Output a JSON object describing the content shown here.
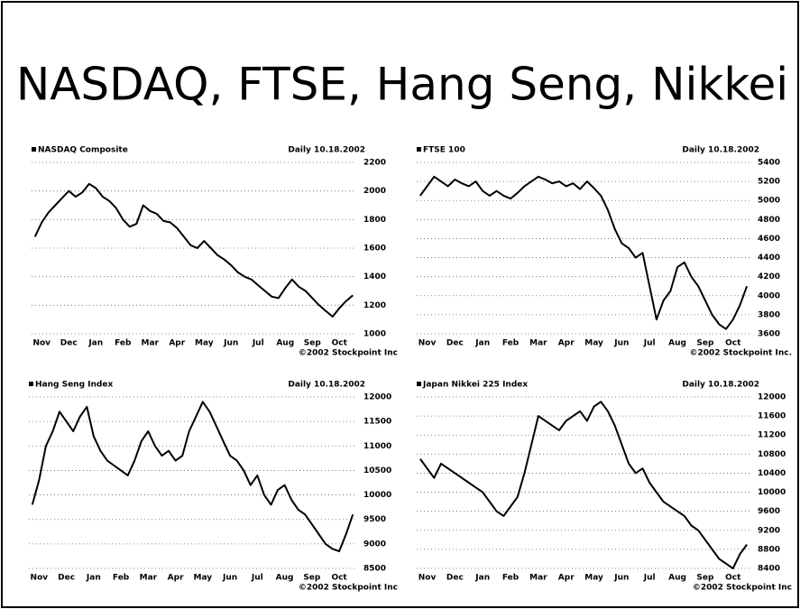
{
  "title": "NASDAQ, FTSE, Hang Seng, Nikkei",
  "chart_data": [
    {
      "type": "line",
      "title": "NASDAQ Composite",
      "subtitle": "Daily 10.18.2002",
      "credit": "©2002 Stockpoint Inc",
      "color": "#000000",
      "grid": true,
      "categories": [
        null,
        "Nov",
        null,
        null,
        null,
        "Dec",
        null,
        null,
        null,
        "Jan",
        null,
        null,
        null,
        "Feb",
        null,
        null,
        null,
        "Mar",
        null,
        null,
        null,
        "Apr",
        null,
        null,
        null,
        "May",
        null,
        null,
        null,
        "Jun",
        null,
        null,
        null,
        "Jul",
        null,
        null,
        null,
        "Aug",
        null,
        null,
        null,
        "Sep",
        null,
        null,
        null,
        "Oct",
        null,
        null
      ],
      "values": [
        1680,
        1780,
        1850,
        1900,
        1950,
        2000,
        1960,
        1990,
        2050,
        2020,
        1960,
        1930,
        1880,
        1800,
        1750,
        1770,
        1900,
        1860,
        1840,
        1790,
        1780,
        1740,
        1680,
        1620,
        1600,
        1650,
        1600,
        1550,
        1520,
        1480,
        1430,
        1400,
        1380,
        1340,
        1300,
        1260,
        1250,
        1320,
        1380,
        1330,
        1300,
        1250,
        1200,
        1160,
        1120,
        1180,
        1230,
        1270
      ],
      "ylim": [
        1000,
        2200
      ],
      "yticks": [
        1000,
        1200,
        1400,
        1600,
        1800,
        2000,
        2200
      ]
    },
    {
      "type": "line",
      "title": "FTSE 100",
      "subtitle": "Daily 10.18.2002",
      "credit": "©2002 Stockpoint Inc.",
      "color": "#000000",
      "grid": true,
      "categories": [
        null,
        "Nov",
        null,
        null,
        null,
        "Dec",
        null,
        null,
        null,
        "Jan",
        null,
        null,
        null,
        "Feb",
        null,
        null,
        null,
        "Mar",
        null,
        null,
        null,
        "Apr",
        null,
        null,
        null,
        "May",
        null,
        null,
        null,
        "Jun",
        null,
        null,
        null,
        "Jul",
        null,
        null,
        null,
        "Aug",
        null,
        null,
        null,
        "Sep",
        null,
        null,
        null,
        "Oct",
        null,
        null
      ],
      "values": [
        5050,
        5150,
        5250,
        5200,
        5150,
        5220,
        5180,
        5150,
        5200,
        5100,
        5050,
        5100,
        5050,
        5020,
        5080,
        5150,
        5200,
        5250,
        5220,
        5180,
        5200,
        5150,
        5180,
        5120,
        5200,
        5130,
        5050,
        4900,
        4700,
        4550,
        4500,
        4400,
        4450,
        4100,
        3750,
        3950,
        4050,
        4300,
        4350,
        4200,
        4100,
        3950,
        3800,
        3700,
        3650,
        3750,
        3900,
        4100
      ],
      "ylim": [
        3600,
        5400
      ],
      "yticks": [
        3600,
        3800,
        4000,
        4200,
        4400,
        4600,
        4800,
        5000,
        5200,
        5400
      ]
    },
    {
      "type": "line",
      "title": "Hang Seng Index",
      "subtitle": "Daily 10.18.2002",
      "credit": "©2002 Stockpoint Inc",
      "color": "#000000",
      "grid": true,
      "categories": [
        null,
        "Nov",
        null,
        null,
        null,
        "Dec",
        null,
        null,
        null,
        "Jan",
        null,
        null,
        null,
        "Feb",
        null,
        null,
        null,
        "Mar",
        null,
        null,
        null,
        "Apr",
        null,
        null,
        null,
        "May",
        null,
        null,
        null,
        "Jun",
        null,
        null,
        null,
        "Jul",
        null,
        null,
        null,
        "Aug",
        null,
        null,
        null,
        "Sep",
        null,
        null,
        null,
        "Oct",
        null,
        null
      ],
      "values": [
        9800,
        10300,
        11000,
        11300,
        11700,
        11500,
        11300,
        11600,
        11800,
        11200,
        10900,
        10700,
        10600,
        10500,
        10400,
        10700,
        11100,
        11300,
        11000,
        10800,
        10900,
        10700,
        10800,
        11300,
        11600,
        11900,
        11700,
        11400,
        11100,
        10800,
        10700,
        10500,
        10200,
        10400,
        10000,
        9800,
        10100,
        10200,
        9900,
        9700,
        9600,
        9400,
        9200,
        9000,
        8900,
        8850,
        9200,
        9600
      ],
      "ylim": [
        8500,
        12000
      ],
      "yticks": [
        8500,
        9000,
        9500,
        10000,
        10500,
        11000,
        11500,
        12000
      ]
    },
    {
      "type": "line",
      "title": "Japan Nikkei 225 Index",
      "subtitle": "Daily 10.18.2002",
      "credit": "©2002 Stockpoint Inc",
      "color": "#000000",
      "grid": true,
      "categories": [
        null,
        "Nov",
        null,
        null,
        null,
        "Dec",
        null,
        null,
        null,
        "Jan",
        null,
        null,
        null,
        "Feb",
        null,
        null,
        null,
        "Mar",
        null,
        null,
        null,
        "Apr",
        null,
        null,
        null,
        "May",
        null,
        null,
        null,
        "Jun",
        null,
        null,
        null,
        "Jul",
        null,
        null,
        null,
        "Aug",
        null,
        null,
        null,
        "Sep",
        null,
        null,
        null,
        "Oct",
        null,
        null
      ],
      "values": [
        10700,
        10500,
        10300,
        10600,
        10500,
        10400,
        10300,
        10200,
        10100,
        10000,
        9800,
        9600,
        9500,
        9700,
        9900,
        10400,
        11000,
        11600,
        11500,
        11400,
        11300,
        11500,
        11600,
        11700,
        11500,
        11800,
        11900,
        11700,
        11400,
        11000,
        10600,
        10400,
        10500,
        10200,
        10000,
        9800,
        9700,
        9600,
        9500,
        9300,
        9200,
        9000,
        8800,
        8600,
        8500,
        8400,
        8700,
        8900
      ],
      "ylim": [
        8400,
        12000
      ],
      "yticks": [
        8400,
        8800,
        9200,
        9600,
        10000,
        10400,
        10800,
        11200,
        11600,
        12000
      ]
    }
  ]
}
